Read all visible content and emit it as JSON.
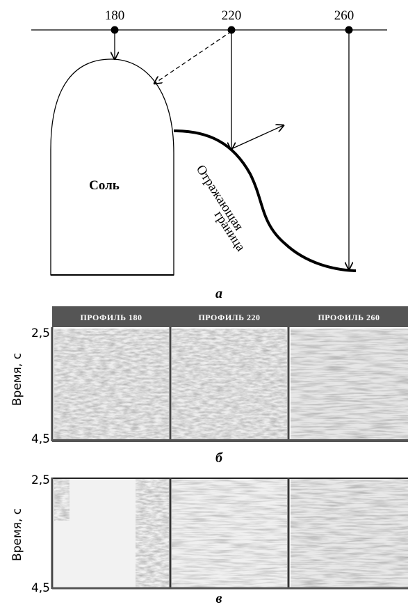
{
  "diagram": {
    "profiles": [
      "180",
      "220",
      "260"
    ],
    "salt_label": "Соль",
    "boundary_label": [
      "Отражающая",
      "граница"
    ],
    "caption": "а"
  },
  "panel_b": {
    "headers": [
      "ПРОФИЛЬ 180",
      "ПРОФИЛЬ 220",
      "ПРОФИЛЬ 260"
    ],
    "y_axis_label": "Время, с",
    "y_ticks": [
      "2,5",
      "4,5"
    ],
    "caption": "б"
  },
  "panel_c": {
    "y_axis_label": "Время, с",
    "y_ticks": [
      "2,5",
      "4,5"
    ],
    "caption": "в"
  }
}
